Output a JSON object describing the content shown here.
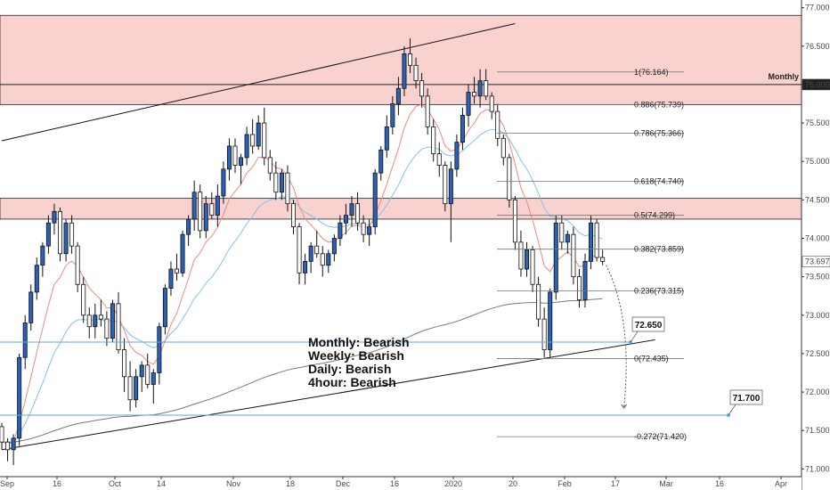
{
  "chart_data": {
    "type": "candlestick",
    "timeframe": "daily",
    "ylim": [
      70.9,
      77.1
    ],
    "y_ticks": [
      "77.000",
      "76.500",
      "76.000",
      "75.500",
      "75.000",
      "74.500",
      "74.000",
      "73.500",
      "73.000",
      "72.500",
      "72.000",
      "71.500",
      "71.000"
    ],
    "x_ticks": [
      "Sep",
      "16",
      "Oct",
      "14",
      "Nov",
      "18",
      "Dec",
      "16",
      "2020",
      "20",
      "Feb",
      "17",
      "Mar",
      "16",
      "Apr"
    ],
    "price_badges": [
      {
        "label": "76.000",
        "value": 76.0,
        "color": "#222222",
        "text_color": "#ffffff"
      },
      {
        "label": "73.697",
        "value": 73.697,
        "color": "#ffffff",
        "text_color": "#222222"
      }
    ],
    "monthly_label": "Monthly",
    "supply_zones": [
      [
        75.74,
        76.9
      ],
      [
        74.25,
        74.52
      ]
    ],
    "fib_levels": [
      {
        "label": "1(76.164)",
        "value": 76.164
      },
      {
        "label": "0.886(75.739)",
        "value": 75.739
      },
      {
        "label": "0.786(75.366)",
        "value": 75.366
      },
      {
        "label": "0.618(74.740)",
        "value": 74.74
      },
      {
        "label": "0.5(74.299)",
        "value": 74.299
      },
      {
        "label": "0.382(73.859)",
        "value": 73.859
      },
      {
        "label": "0.236(73.315)",
        "value": 73.315
      },
      {
        "label": "0(72.435)",
        "value": 72.435
      },
      {
        "label": "-0.272(71.420)",
        "value": 71.42
      }
    ],
    "targets": [
      {
        "label": "72.650",
        "value": 72.65
      },
      {
        "label": "71.700",
        "value": 71.7
      }
    ],
    "bias": [
      "Monthly: Bearish",
      "Weekly: Bearish",
      "Daily: Bearish",
      "4hour: Bearish"
    ],
    "colors": {
      "bull": "#2962b8",
      "bear": "#ffffff",
      "outline": "#111111",
      "zone_fill": "#f9d2d0",
      "ema_fast": "#ef8a7e",
      "ema_mid": "#7ec4ec",
      "ma_slow": "#7a7a7a",
      "target_line": "#5aa8e0"
    },
    "candles": [
      [
        71.55,
        71.6,
        71.25,
        71.35
      ],
      [
        71.35,
        71.4,
        71.1,
        71.25
      ],
      [
        71.25,
        71.45,
        71.05,
        71.4
      ],
      [
        71.4,
        72.5,
        71.3,
        72.45
      ],
      [
        72.45,
        73.0,
        72.3,
        72.9
      ],
      [
        72.9,
        73.4,
        72.8,
        73.3
      ],
      [
        73.3,
        73.75,
        73.2,
        73.65
      ],
      [
        73.65,
        73.95,
        73.5,
        73.9
      ],
      [
        73.9,
        74.3,
        73.8,
        74.2
      ],
      [
        74.2,
        74.45,
        74.05,
        74.35
      ],
      [
        74.35,
        74.4,
        73.7,
        73.8
      ],
      [
        73.8,
        74.25,
        73.7,
        74.2
      ],
      [
        74.2,
        74.3,
        73.8,
        73.9
      ],
      [
        73.9,
        73.95,
        73.3,
        73.4
      ],
      [
        73.4,
        73.5,
        72.9,
        73.0
      ],
      [
        73.0,
        73.1,
        72.7,
        72.85
      ],
      [
        72.85,
        73.15,
        72.7,
        73.0
      ],
      [
        73.0,
        73.2,
        72.85,
        72.95
      ],
      [
        72.95,
        73.05,
        72.6,
        72.7
      ],
      [
        72.7,
        73.2,
        72.65,
        73.15
      ],
      [
        73.15,
        73.3,
        72.5,
        72.55
      ],
      [
        72.55,
        72.7,
        72.0,
        72.2
      ],
      [
        72.2,
        72.4,
        71.75,
        71.9
      ],
      [
        71.9,
        72.3,
        71.8,
        72.2
      ],
      [
        72.2,
        72.4,
        72.0,
        72.35
      ],
      [
        72.35,
        72.5,
        72.05,
        72.1
      ],
      [
        72.1,
        72.3,
        71.85,
        72.25
      ],
      [
        72.25,
        72.9,
        72.1,
        72.85
      ],
      [
        72.85,
        73.4,
        72.75,
        73.35
      ],
      [
        73.35,
        73.7,
        73.25,
        73.6
      ],
      [
        73.6,
        73.8,
        73.45,
        73.55
      ],
      [
        73.55,
        74.1,
        73.5,
        74.05
      ],
      [
        74.05,
        74.3,
        73.9,
        74.25
      ],
      [
        74.25,
        74.75,
        74.1,
        74.6
      ],
      [
        74.6,
        74.7,
        74.0,
        74.1
      ],
      [
        74.1,
        74.55,
        74.0,
        74.45
      ],
      [
        74.45,
        74.6,
        74.25,
        74.3
      ],
      [
        74.3,
        74.7,
        74.15,
        74.55
      ],
      [
        74.55,
        75.0,
        74.45,
        74.9
      ],
      [
        74.9,
        75.3,
        74.75,
        75.2
      ],
      [
        75.2,
        75.3,
        74.85,
        74.95
      ],
      [
        74.95,
        75.1,
        74.7,
        75.05
      ],
      [
        75.05,
        75.45,
        74.95,
        75.35
      ],
      [
        75.35,
        75.55,
        75.1,
        75.2
      ],
      [
        75.2,
        75.6,
        75.15,
        75.5
      ],
      [
        75.5,
        75.7,
        74.95,
        75.05
      ],
      [
        75.05,
        75.15,
        74.75,
        74.85
      ],
      [
        74.85,
        75.0,
        74.5,
        74.6
      ],
      [
        74.6,
        74.9,
        74.5,
        74.85
      ],
      [
        74.85,
        74.95,
        74.35,
        74.45
      ],
      [
        74.45,
        74.5,
        74.05,
        74.15
      ],
      [
        74.15,
        74.2,
        73.4,
        73.55
      ],
      [
        73.55,
        73.8,
        73.4,
        73.7
      ],
      [
        73.7,
        73.95,
        73.55,
        73.9
      ],
      [
        73.9,
        74.1,
        73.75,
        73.8
      ],
      [
        73.8,
        73.9,
        73.5,
        73.65
      ],
      [
        73.65,
        73.85,
        73.55,
        73.8
      ],
      [
        73.8,
        74.05,
        73.7,
        74.0
      ],
      [
        74.0,
        74.3,
        73.9,
        74.2
      ],
      [
        74.2,
        74.45,
        74.05,
        74.3
      ],
      [
        74.3,
        74.55,
        74.15,
        74.45
      ],
      [
        74.45,
        74.6,
        74.1,
        74.2
      ],
      [
        74.2,
        74.3,
        73.95,
        74.05
      ],
      [
        74.05,
        74.25,
        73.9,
        74.15
      ],
      [
        74.15,
        74.9,
        74.05,
        74.85
      ],
      [
        74.85,
        75.2,
        74.75,
        75.15
      ],
      [
        75.15,
        75.6,
        75.05,
        75.45
      ],
      [
        75.45,
        75.85,
        75.35,
        75.75
      ],
      [
        75.75,
        76.1,
        75.6,
        75.95
      ],
      [
        75.95,
        76.5,
        75.85,
        76.4
      ],
      [
        76.4,
        76.6,
        76.15,
        76.25
      ],
      [
        76.25,
        76.35,
        75.95,
        76.05
      ],
      [
        76.05,
        76.15,
        75.7,
        75.85
      ],
      [
        75.85,
        75.95,
        75.35,
        75.45
      ],
      [
        75.45,
        75.55,
        75.0,
        75.1
      ],
      [
        75.1,
        75.25,
        74.8,
        74.95
      ],
      [
        74.95,
        75.0,
        74.35,
        74.45
      ],
      [
        74.45,
        75.0,
        73.95,
        74.9
      ],
      [
        74.9,
        75.35,
        74.8,
        75.25
      ],
      [
        75.25,
        75.7,
        75.15,
        75.6
      ],
      [
        75.6,
        76.0,
        75.45,
        75.9
      ],
      [
        75.9,
        76.1,
        75.75,
        75.85
      ],
      [
        75.85,
        76.2,
        75.7,
        76.05
      ],
      [
        76.05,
        76.2,
        75.8,
        75.85
      ],
      [
        75.85,
        75.9,
        75.55,
        75.65
      ],
      [
        75.65,
        75.75,
        75.2,
        75.3
      ],
      [
        75.3,
        75.35,
        74.95,
        75.05
      ],
      [
        75.05,
        75.1,
        74.4,
        74.5
      ],
      [
        74.5,
        74.55,
        73.85,
        73.95
      ],
      [
        73.95,
        74.1,
        73.5,
        73.6
      ],
      [
        73.6,
        73.95,
        73.5,
        73.85
      ],
      [
        73.85,
        73.9,
        73.3,
        73.4
      ],
      [
        73.4,
        73.5,
        72.85,
        72.95
      ],
      [
        72.95,
        73.1,
        72.45,
        72.55
      ],
      [
        72.55,
        73.35,
        72.45,
        73.3
      ],
      [
        73.3,
        74.3,
        73.2,
        74.2
      ],
      [
        74.2,
        74.3,
        73.85,
        73.95
      ],
      [
        73.95,
        74.1,
        73.8,
        74.05
      ],
      [
        74.05,
        74.15,
        73.4,
        73.5
      ],
      [
        73.5,
        73.6,
        73.1,
        73.2
      ],
      [
        73.2,
        73.8,
        73.1,
        73.7
      ],
      [
        73.7,
        74.3,
        73.6,
        74.2
      ],
      [
        74.2,
        74.25,
        73.7,
        73.75
      ],
      [
        73.75,
        73.85,
        73.65,
        73.7
      ]
    ]
  }
}
